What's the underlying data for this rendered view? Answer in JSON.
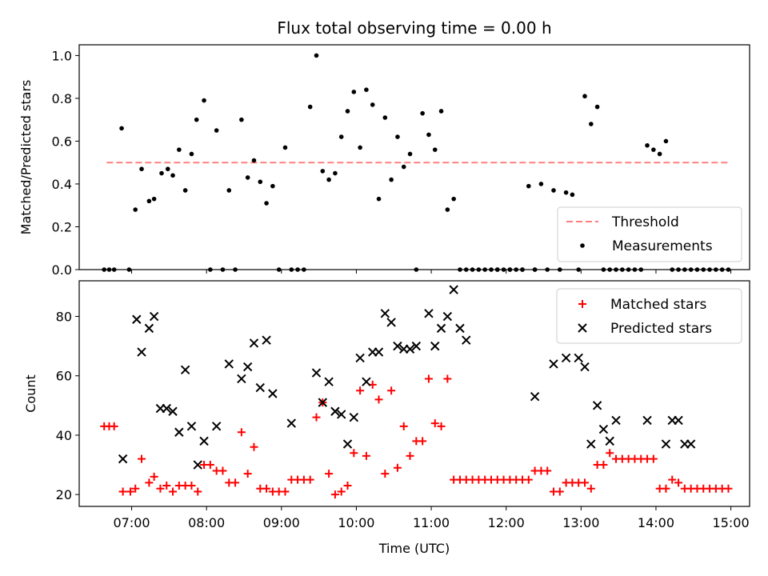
{
  "chart_data": [
    {
      "type": "scatter",
      "title": "Flux total observing time = 0.00 h",
      "ylabel": "Matched/Predicted stars",
      "xlabel": "",
      "ylim": [
        0,
        1.05
      ],
      "yticks": [
        "0.0",
        "0.2",
        "0.4",
        "0.6",
        "0.8",
        "1.0"
      ],
      "ytick_values": [
        0,
        0.2,
        0.4,
        0.6,
        0.8,
        1.0
      ],
      "legend_loc": "lower right",
      "threshold": {
        "name": "Threshold",
        "value": 0.5,
        "x_start": "06:40",
        "x_end": "14:58",
        "color": "#ff7f7f"
      },
      "series": [
        {
          "name": "Measurements",
          "color": "#000000",
          "x": [
            "06:38",
            "06:42",
            "06:46",
            "06:52",
            "06:58",
            "07:03",
            "07:08",
            "07:14",
            "07:18",
            "07:24",
            "07:29",
            "07:33",
            "07:38",
            "07:43",
            "07:48",
            "07:52",
            "07:58",
            "08:03",
            "08:08",
            "08:13",
            "08:18",
            "08:23",
            "08:28",
            "08:33",
            "08:38",
            "08:43",
            "08:48",
            "08:53",
            "08:58",
            "09:03",
            "09:08",
            "09:13",
            "09:18",
            "09:23",
            "09:28",
            "09:33",
            "09:38",
            "09:43",
            "09:48",
            "09:53",
            "09:58",
            "10:03",
            "10:08",
            "10:13",
            "10:18",
            "10:23",
            "10:28",
            "10:33",
            "10:38",
            "10:43",
            "10:48",
            "10:53",
            "10:58",
            "11:03",
            "11:08",
            "11:13",
            "11:18",
            "11:23",
            "11:28",
            "11:33",
            "11:38",
            "11:43",
            "11:48",
            "11:53",
            "11:58",
            "12:03",
            "12:08",
            "12:13",
            "12:18",
            "12:23",
            "12:28",
            "12:33",
            "12:38",
            "12:43",
            "12:48",
            "12:53",
            "12:58",
            "13:03",
            "13:08",
            "13:13",
            "13:18",
            "13:23",
            "13:28",
            "13:33",
            "13:38",
            "13:43",
            "13:48",
            "13:53",
            "13:58",
            "14:03",
            "14:08",
            "14:13",
            "14:18",
            "14:23",
            "14:28",
            "14:33",
            "14:38",
            "14:43",
            "14:48",
            "14:53",
            "14:58",
            "12:03",
            "12:13",
            "12:23",
            "11:53"
          ],
          "y": [
            0,
            0,
            0,
            0.66,
            0,
            0.28,
            0.47,
            0.32,
            0.33,
            0.45,
            0.47,
            0.44,
            0.56,
            0.37,
            0.54,
            0.7,
            0.79,
            0,
            0.65,
            0,
            0.37,
            0,
            0.7,
            0.43,
            0.51,
            0.41,
            0.31,
            0.39,
            0,
            0.57,
            0,
            0,
            0,
            0.76,
            1.0,
            0.46,
            0.42,
            0.45,
            0.62,
            0.74,
            0.83,
            0.57,
            0.84,
            0.77,
            0.33,
            0.71,
            0.42,
            0.62,
            0.48,
            0.54,
            0,
            0.73,
            0.63,
            0.56,
            0.74,
            0.28,
            0.33,
            0,
            0,
            0,
            0,
            0,
            0,
            0,
            0,
            0,
            0,
            0,
            0.39,
            0,
            0.4,
            0,
            0.37,
            0,
            0.36,
            0.35,
            0,
            0.81,
            0.68,
            0.76,
            0,
            0,
            0,
            0,
            0,
            0,
            0,
            0.58,
            0.56,
            0.54,
            0.6,
            0,
            0,
            0,
            0,
            0,
            0,
            0,
            0,
            0,
            0,
            0,
            0,
            0,
            0
          ]
        }
      ]
    },
    {
      "type": "scatter",
      "title": "",
      "ylabel": "Count",
      "xlabel": "Time (UTC)",
      "ylim": [
        16,
        92
      ],
      "yticks": [
        "20",
        "40",
        "60",
        "80"
      ],
      "ytick_values": [
        20,
        40,
        60,
        80
      ],
      "xlim": [
        "06:18",
        "15:15"
      ],
      "xticks": [
        "07:00",
        "08:00",
        "09:00",
        "10:00",
        "11:00",
        "12:00",
        "13:00",
        "14:00",
        "15:00"
      ],
      "legend_loc": "upper right",
      "series": [
        {
          "name": "Matched stars",
          "color": "#ff0000",
          "marker": "plus",
          "x": [
            "06:38",
            "06:42",
            "06:46",
            "06:53",
            "06:59",
            "07:03",
            "07:08",
            "07:14",
            "07:18",
            "07:23",
            "07:28",
            "07:33",
            "07:38",
            "07:43",
            "07:48",
            "07:53",
            "07:58",
            "08:03",
            "08:08",
            "08:13",
            "08:18",
            "08:23",
            "08:28",
            "08:33",
            "08:38",
            "08:43",
            "08:48",
            "08:53",
            "08:58",
            "09:03",
            "09:08",
            "09:13",
            "09:18",
            "09:23",
            "09:28",
            "09:33",
            "09:38",
            "09:43",
            "09:48",
            "09:53",
            "09:58",
            "10:03",
            "10:08",
            "10:13",
            "10:18",
            "10:23",
            "10:28",
            "10:33",
            "10:38",
            "10:43",
            "10:48",
            "10:53",
            "10:58",
            "11:03",
            "11:08",
            "11:13",
            "11:18",
            "11:23",
            "11:28",
            "11:33",
            "11:38",
            "11:43",
            "11:48",
            "11:53",
            "11:58",
            "12:03",
            "12:08",
            "12:13",
            "12:18",
            "12:23",
            "12:28",
            "12:33",
            "12:38",
            "12:43",
            "12:48",
            "12:53",
            "12:58",
            "13:03",
            "13:08",
            "13:13",
            "13:18",
            "13:23",
            "13:28",
            "13:33",
            "13:38",
            "13:43",
            "13:48",
            "13:53",
            "13:58",
            "14:03",
            "14:08",
            "14:13",
            "14:18",
            "14:23",
            "14:28",
            "14:33",
            "14:38",
            "14:43",
            "14:48",
            "14:53",
            "14:58"
          ],
          "y": [
            43,
            43,
            43,
            21,
            21,
            22,
            32,
            24,
            26,
            22,
            23,
            21,
            23,
            23,
            23,
            21,
            30,
            30,
            28,
            28,
            24,
            24,
            41,
            27,
            36,
            22,
            22,
            21,
            21,
            21,
            25,
            25,
            25,
            25,
            46,
            51,
            27,
            20,
            21,
            23,
            34,
            55,
            33,
            57,
            52,
            27,
            55,
            29,
            43,
            33,
            38,
            38,
            59,
            44,
            43,
            59,
            25,
            25,
            25,
            25,
            25,
            25,
            25,
            25,
            25,
            25,
            25,
            25,
            25,
            28,
            28,
            28,
            21,
            21,
            24,
            24,
            24,
            24,
            22,
            30,
            30,
            34,
            32,
            32,
            32,
            32,
            32,
            32,
            32,
            22,
            22,
            25,
            24,
            22,
            22,
            22,
            22,
            22,
            22,
            22,
            22
          ]
        },
        {
          "name": "Predicted stars",
          "color": "#000000",
          "marker": "x",
          "x": [
            "06:53",
            "07:04",
            "07:08",
            "07:14",
            "07:18",
            "07:23",
            "07:28",
            "07:33",
            "07:38",
            "07:43",
            "07:48",
            "07:53",
            "07:58",
            "08:08",
            "08:18",
            "08:28",
            "08:33",
            "08:38",
            "08:43",
            "08:48",
            "08:53",
            "09:08",
            "09:28",
            "09:33",
            "09:38",
            "09:43",
            "09:48",
            "09:53",
            "09:58",
            "10:03",
            "10:08",
            "10:13",
            "10:18",
            "10:23",
            "10:28",
            "10:33",
            "10:38",
            "10:43",
            "10:48",
            "10:58",
            "11:03",
            "11:08",
            "11:13",
            "11:18",
            "11:23",
            "11:28",
            "12:23",
            "12:38",
            "12:48",
            "12:58",
            "13:03",
            "13:08",
            "13:13",
            "13:18",
            "13:23",
            "13:28",
            "13:53",
            "14:08",
            "14:13",
            "14:18",
            "14:23",
            "14:28"
          ],
          "y": [
            32,
            79,
            68,
            76,
            80,
            49,
            49,
            48,
            41,
            62,
            43,
            30,
            38,
            43,
            64,
            59,
            63,
            71,
            56,
            72,
            54,
            44,
            61,
            51,
            58,
            48,
            47,
            37,
            46,
            66,
            58,
            68,
            68,
            81,
            78,
            70,
            69,
            69,
            70,
            81,
            70,
            76,
            80,
            89,
            76,
            72,
            53,
            64,
            66,
            66,
            63,
            37,
            50,
            42,
            38,
            45,
            45,
            37,
            45,
            45,
            37,
            37
          ]
        }
      ]
    }
  ]
}
